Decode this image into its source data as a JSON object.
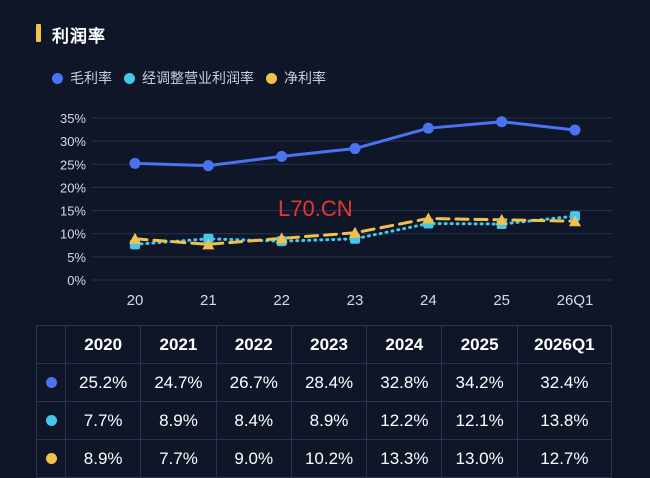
{
  "header": {
    "title": "利润率"
  },
  "colors": {
    "title_accent": "#f3c34a",
    "grid": "#2a3350",
    "axis_text": "#d6dae4"
  },
  "chart_data": {
    "type": "line",
    "categories": [
      "20",
      "21",
      "22",
      "23",
      "24",
      "25",
      "26Q1"
    ],
    "ylim": [
      0,
      35
    ],
    "yticks": [
      "0%",
      "5%",
      "10%",
      "15%",
      "20%",
      "25%",
      "30%",
      "35%"
    ],
    "ytick_values": [
      0,
      5,
      10,
      15,
      20,
      25,
      30,
      35
    ],
    "legend_position": "top-left",
    "series": [
      {
        "name": "毛利率",
        "color": "#4a73f2",
        "style": "solid",
        "marker": "circle",
        "values": [
          25.2,
          24.7,
          26.7,
          28.4,
          32.8,
          34.2,
          32.4
        ]
      },
      {
        "name": "经调整营业利润率",
        "color": "#44c7ee",
        "style": "dotted",
        "marker": "square",
        "values": [
          7.7,
          8.9,
          8.4,
          8.9,
          12.2,
          12.1,
          13.8
        ]
      },
      {
        "name": "净利率",
        "color": "#f0c24a",
        "style": "dashed",
        "marker": "triangle",
        "values": [
          8.9,
          7.7,
          9.0,
          10.2,
          13.3,
          13.0,
          12.7
        ]
      }
    ]
  },
  "watermark": "L70.CN",
  "table": {
    "headers": [
      "2020",
      "2021",
      "2022",
      "2023",
      "2024",
      "2025",
      "2026Q1"
    ],
    "rows": [
      {
        "color": "#4a73f2",
        "cells": [
          "25.2%",
          "24.7%",
          "26.7%",
          "28.4%",
          "32.8%",
          "34.2%",
          "32.4%"
        ]
      },
      {
        "color": "#44c7ee",
        "cells": [
          "7.7%",
          "8.9%",
          "8.4%",
          "8.9%",
          "12.2%",
          "12.1%",
          "13.8%"
        ]
      },
      {
        "color": "#f0c24a",
        "cells": [
          "8.9%",
          "7.7%",
          "9.0%",
          "10.2%",
          "13.3%",
          "13.0%",
          "12.7%"
        ]
      }
    ]
  }
}
